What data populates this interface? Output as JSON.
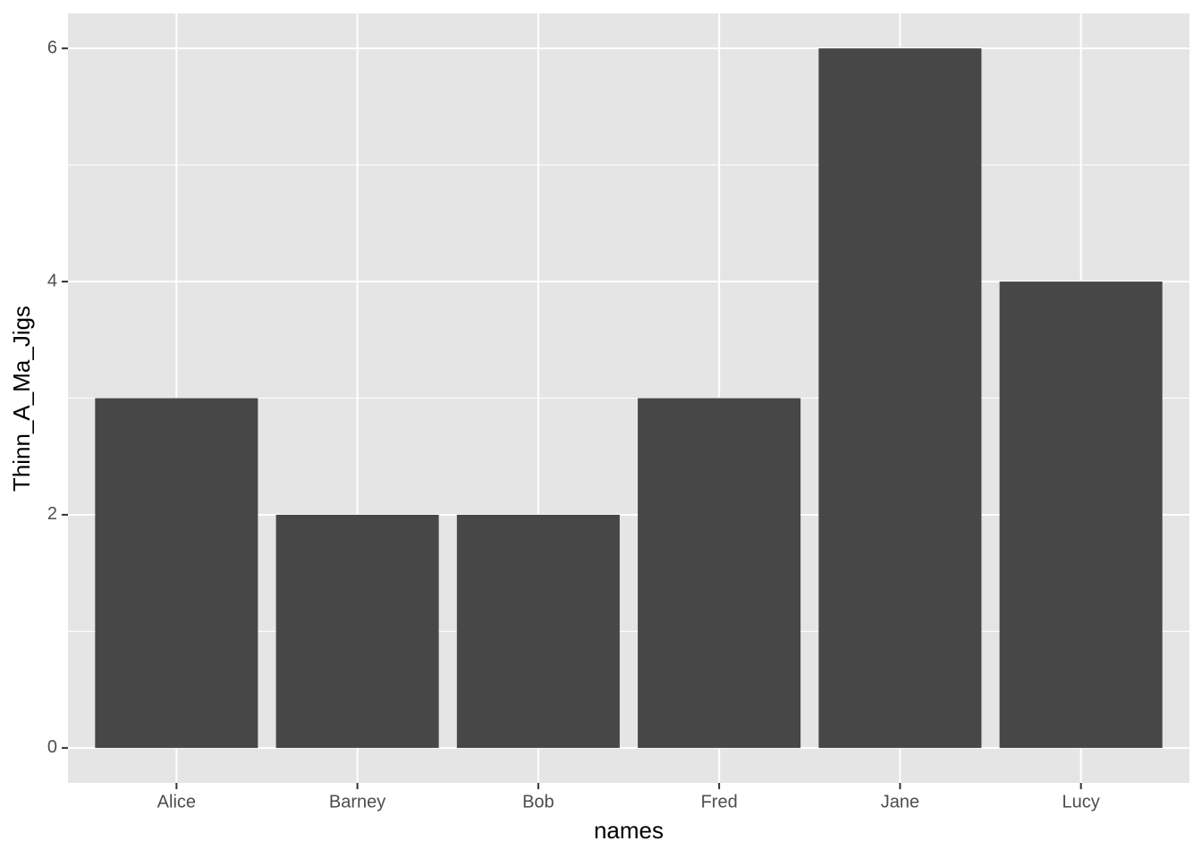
{
  "chart_data": {
    "type": "bar",
    "x_label": "names",
    "y_label": "Thinn_A_Ma_Jigs",
    "categories": [
      "Alice",
      "Barney",
      "Bob",
      "Fred",
      "Jane",
      "Lucy"
    ],
    "values": [
      3,
      2,
      2,
      3,
      6,
      4
    ],
    "color": "#474747",
    "ylim": [
      -0.3,
      6.3
    ],
    "yticks": [
      0,
      2,
      4,
      6
    ],
    "minor_yticks": [
      1,
      3,
      5
    ],
    "grid": true
  }
}
